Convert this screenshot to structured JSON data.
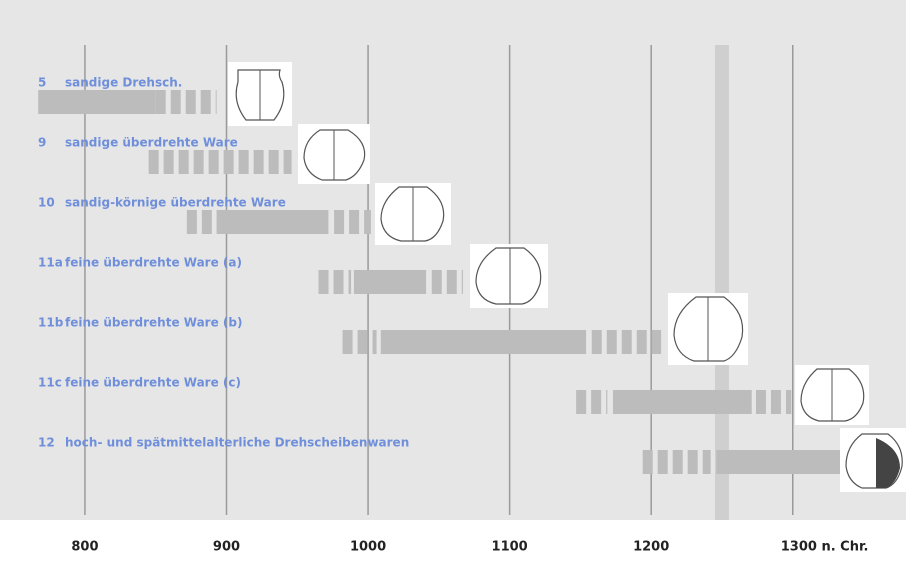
{
  "chart_data": {
    "type": "timeline",
    "xlim": [
      740,
      1380
    ],
    "xticks": [
      800,
      900,
      1000,
      1100,
      1200,
      {
        "value": 1300,
        "label": "1300 n. Chr."
      }
    ],
    "highlight": 1250,
    "color": "#bcbcbc",
    "rows": [
      {
        "code": "5",
        "name": "sandige Drehsch.",
        "segments": [
          {
            "from": 767,
            "to": 850,
            "style": "solid"
          },
          {
            "from": 850,
            "to": 893,
            "style": "dashed"
          }
        ]
      },
      {
        "code": "9",
        "name": "sandige überdrehte Ware",
        "segments": [
          {
            "from": 845,
            "to": 946,
            "style": "dashed"
          }
        ]
      },
      {
        "code": "10",
        "name": "sandig-körnige überdrehte Ware",
        "segments": [
          {
            "from": 872,
            "to": 893,
            "style": "dashed"
          },
          {
            "from": 893,
            "to": 972,
            "style": "solid"
          },
          {
            "from": 976,
            "to": 1002,
            "style": "dashed"
          }
        ]
      },
      {
        "code": "11a",
        "name": "feine überdrehte Ware (a)",
        "segments": [
          {
            "from": 965,
            "to": 988,
            "style": "dashed"
          },
          {
            "from": 990,
            "to": 1041,
            "style": "solid"
          },
          {
            "from": 1045,
            "to": 1067,
            "style": "dashed"
          }
        ]
      },
      {
        "code": "11b",
        "name": "feine überdrehte Ware (b)",
        "segments": [
          {
            "from": 982,
            "to": 1006,
            "style": "dashed"
          },
          {
            "from": 1009,
            "to": 1154,
            "style": "solid"
          },
          {
            "from": 1158,
            "to": 1207,
            "style": "dashed"
          }
        ]
      },
      {
        "code": "11c",
        "name": "feine überdrehte Ware (c)",
        "segments": [
          {
            "from": 1147,
            "to": 1169,
            "style": "dashed"
          },
          {
            "from": 1173,
            "to": 1271,
            "style": "solid"
          },
          {
            "from": 1274,
            "to": 1299,
            "style": "dashed"
          }
        ]
      },
      {
        "code": "12",
        "name": "hoch- und spätmittelalterliche Drehscheibenwaren",
        "segments": [
          {
            "from": 1194,
            "to": 1242,
            "style": "dashed"
          },
          {
            "from": 1246,
            "to": 1334,
            "style": "solid"
          }
        ]
      }
    ]
  }
}
